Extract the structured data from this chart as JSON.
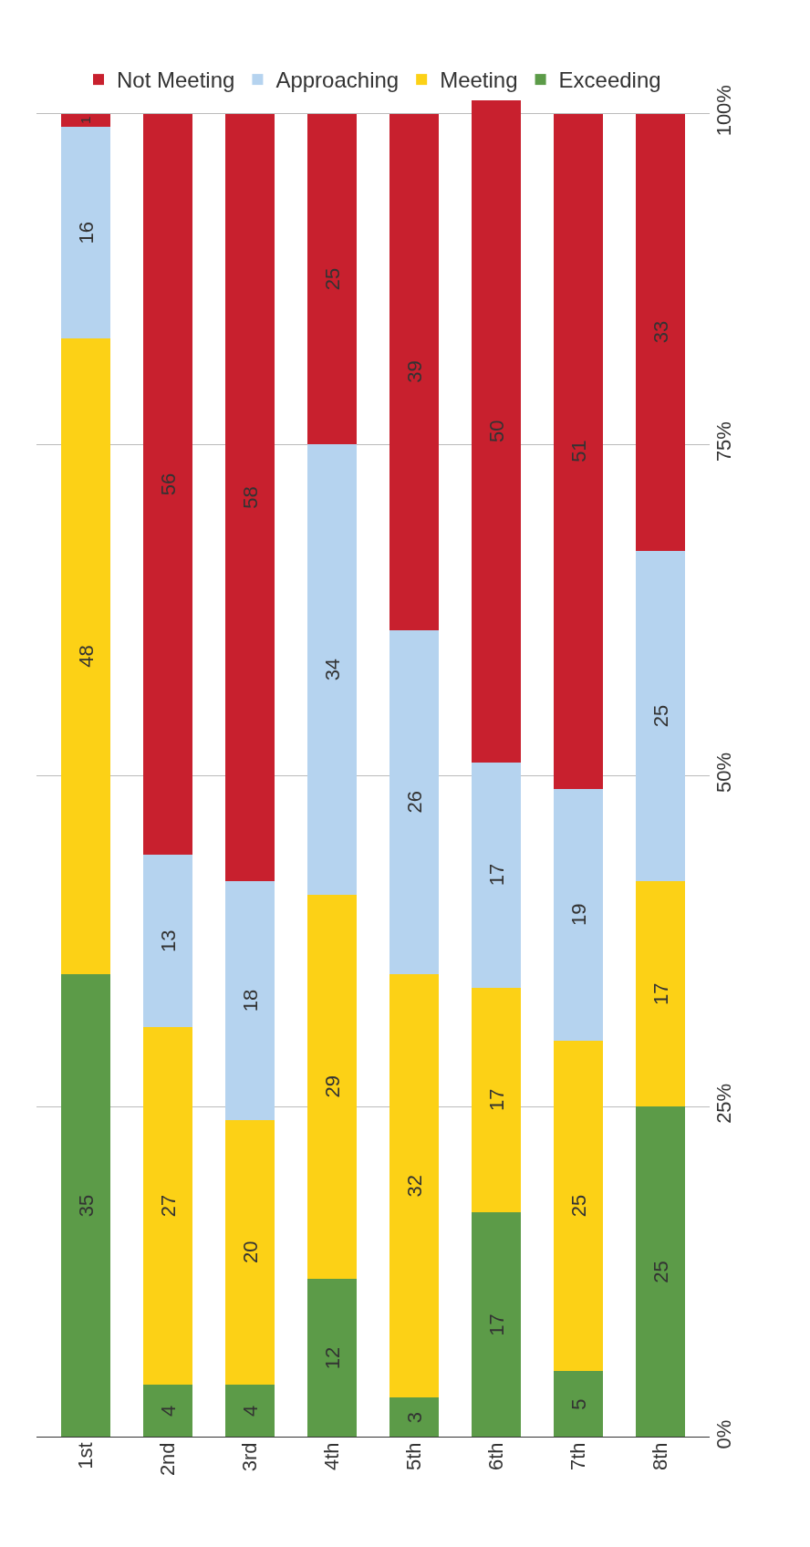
{
  "chart_data": {
    "type": "bar",
    "stacked": true,
    "categories": [
      "1st",
      "2nd",
      "3rd",
      "4th",
      "5th",
      "6th",
      "7th",
      "8th"
    ],
    "series": [
      {
        "name": "Exceeding",
        "color": "#5c9b48",
        "values": [
          35,
          4,
          4,
          12,
          3,
          17,
          5,
          25
        ]
      },
      {
        "name": "Meeting",
        "color": "#fcd116",
        "values": [
          48,
          27,
          20,
          29,
          32,
          17,
          25,
          17
        ]
      },
      {
        "name": "Approaching",
        "color": "#b5d3ef",
        "values": [
          16,
          13,
          18,
          34,
          26,
          17,
          19,
          25
        ]
      },
      {
        "name": "Not Meeting",
        "color": "#c8202e",
        "values": [
          1,
          56,
          58,
          25,
          39,
          50,
          51,
          33
        ]
      }
    ],
    "ylim": [
      0,
      101
    ],
    "yticks": [
      {
        "value": 0,
        "label": "0%"
      },
      {
        "value": 25,
        "label": "25%"
      },
      {
        "value": 50,
        "label": "50%"
      },
      {
        "value": 75,
        "label": "75%"
      },
      {
        "value": 100,
        "label": "100%"
      }
    ],
    "grid": "y",
    "legend": "top",
    "data_labels": true
  }
}
